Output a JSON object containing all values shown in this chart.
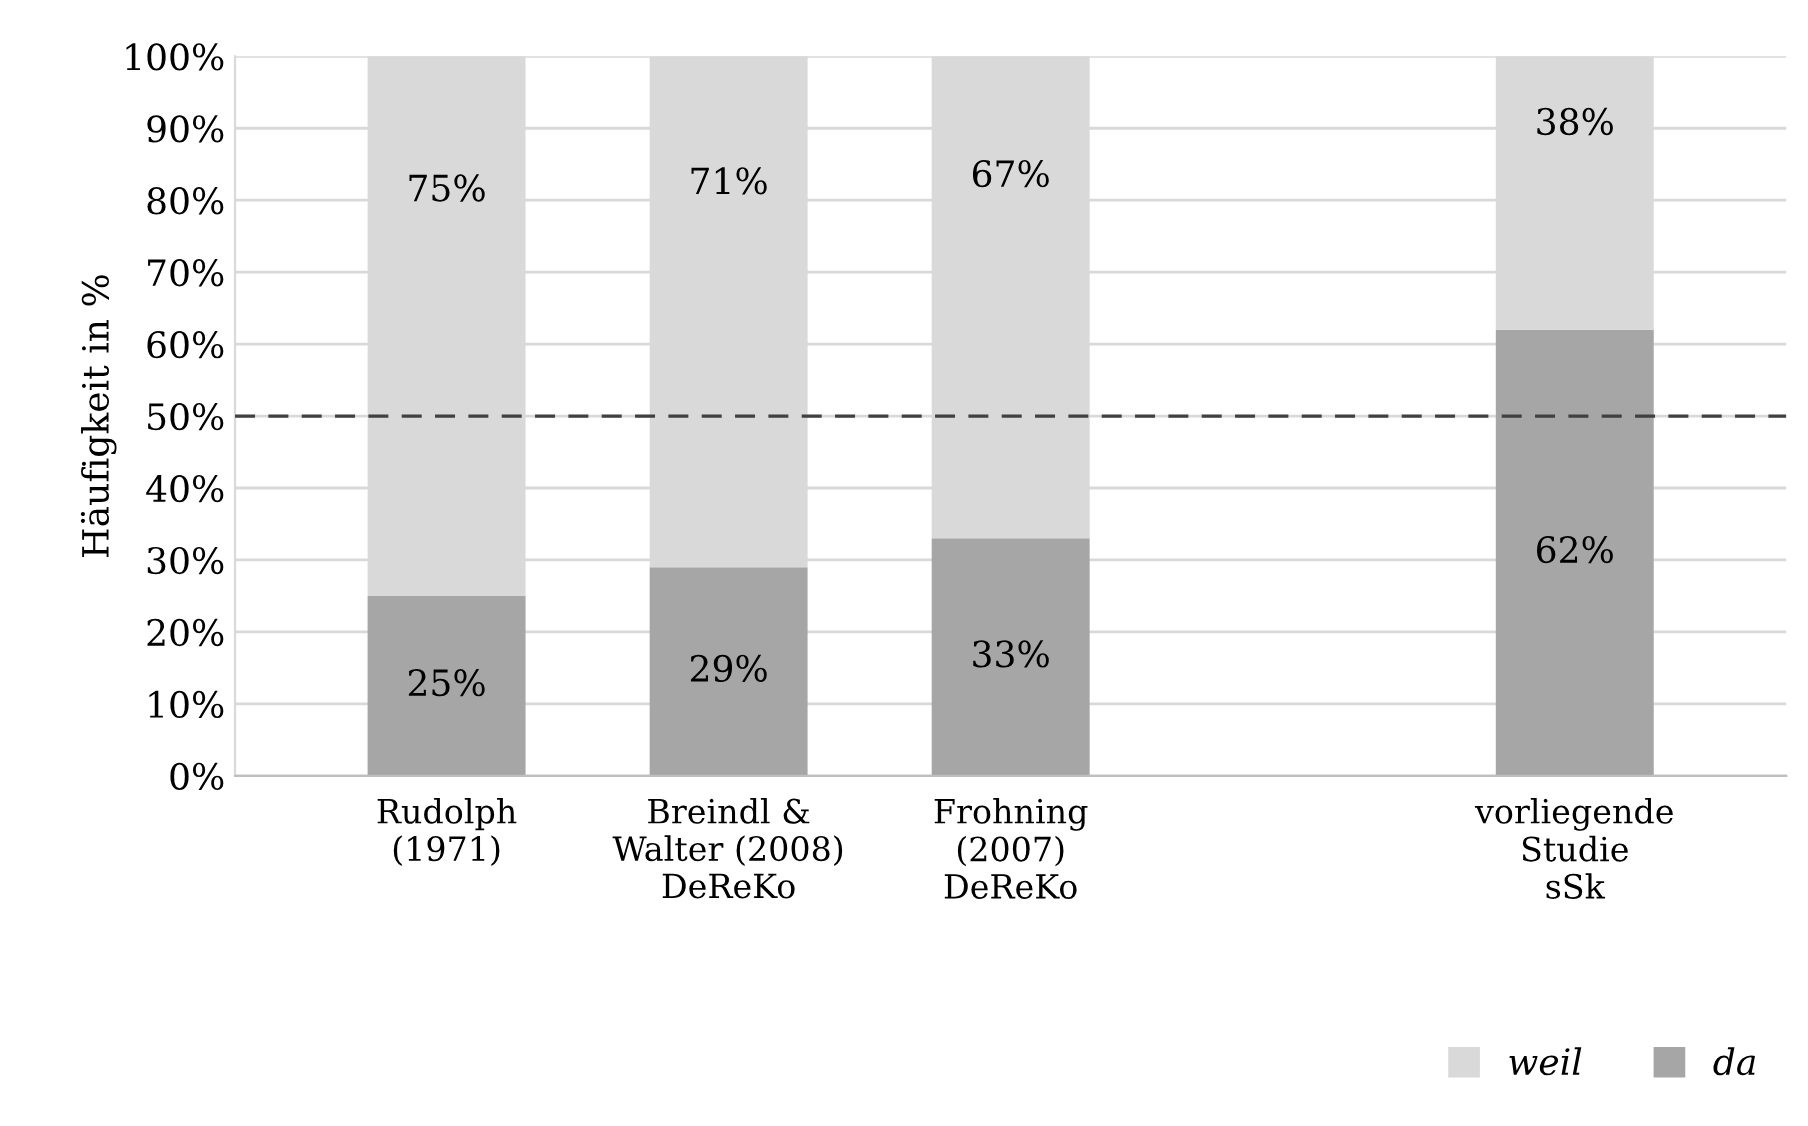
{
  "chart_data": {
    "type": "bar",
    "stacked": true,
    "ylabel": "Häufigkeit in %",
    "categories": [
      "Rudolph\n(1971)",
      "Breindl &\nWalter (2008)\nDeReKo",
      "Frohning\n(2007)\nDeReKo",
      null,
      "vorliegende\nStudie\nsSk"
    ],
    "series": [
      {
        "name": "da",
        "color": "#a6a6a6",
        "values": [
          25,
          29,
          33,
          null,
          62
        ],
        "value_labels": [
          "25%",
          "29%",
          "33%",
          null,
          "62%"
        ]
      },
      {
        "name": "weil",
        "color": "#d9d9d9",
        "values": [
          75,
          71,
          67,
          null,
          38
        ],
        "value_labels": [
          "75%",
          "71%",
          "67%",
          null,
          "38%"
        ]
      }
    ],
    "ylim": [
      0,
      100
    ],
    "yticks": [
      {
        "value": 0,
        "label": "0%"
      },
      {
        "value": 10,
        "label": "10%"
      },
      {
        "value": 20,
        "label": "20%"
      },
      {
        "value": 30,
        "label": "30%"
      },
      {
        "value": 40,
        "label": "40%"
      },
      {
        "value": 50,
        "label": "50%"
      },
      {
        "value": 60,
        "label": "60%"
      },
      {
        "value": 70,
        "label": "70%"
      },
      {
        "value": 80,
        "label": "80%"
      },
      {
        "value": 90,
        "label": "90%"
      },
      {
        "value": 100,
        "label": "100%"
      }
    ],
    "ref_lines": [
      {
        "axis": "y",
        "value": 50,
        "label": null,
        "color": "#404040",
        "line_style": "dashed"
      }
    ],
    "grid": "y",
    "legend": "bottom right"
  }
}
